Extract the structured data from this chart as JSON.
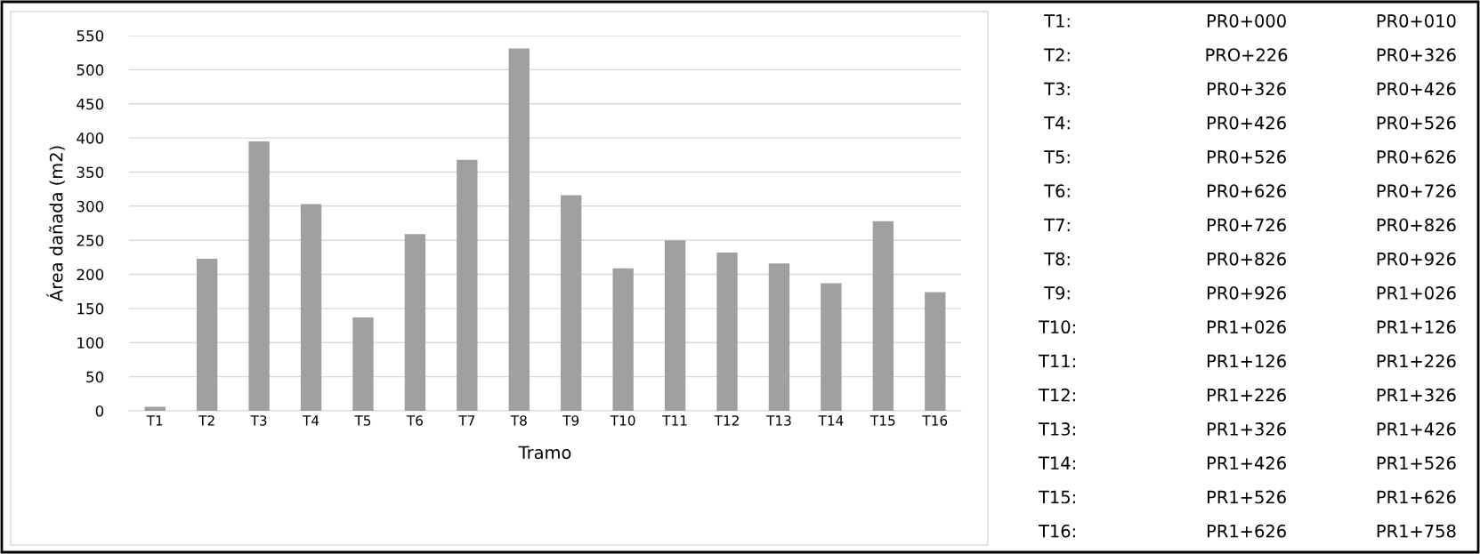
{
  "chart_data": [
    {
      "type": "bar",
      "xlabel": "Tramo",
      "ylabel": "Área dañada (m2)",
      "categories": [
        "T1",
        "T2",
        "T3",
        "T4",
        "T5",
        "T6",
        "T7",
        "T8",
        "T9",
        "T10",
        "T11",
        "T12",
        "T13",
        "T14",
        "T15",
        "T16"
      ],
      "values": [
        6,
        223,
        395,
        303,
        137,
        259,
        368,
        531,
        316,
        209,
        250,
        232,
        216,
        187,
        278,
        174
      ],
      "color": "#a0a0a0",
      "ylim": [
        0,
        550
      ],
      "yticks": [
        0,
        50,
        100,
        150,
        200,
        250,
        300,
        350,
        400,
        450,
        500,
        550
      ],
      "grid": "y"
    },
    {
      "type": "other",
      "annotations": [
        "T1:",
        "PR0+000",
        "PR0+010",
        "T2:",
        "PRO+226",
        "PR0+326",
        "T3:",
        "PR0+326",
        "PR0+426",
        "T4:",
        "PR0+426",
        "PR0+526",
        "T5:",
        "PR0+526",
        "PR0+626",
        "T6:",
        "PR0+626",
        "PR0+726",
        "T7:",
        "PR0+726",
        "PR0+826",
        "T8:",
        "PR0+826",
        "PR0+926",
        "T9:",
        "PR0+926",
        "PR1+026",
        "T10:",
        "PR1+026",
        "PR1+126",
        "T11:",
        "PR1+126",
        "PR1+226",
        "T12:",
        "PR1+226",
        "PR1+326",
        "T13:",
        "PR1+326",
        "PR1+426",
        "T14:",
        "PR1+426",
        "PR1+526",
        "T15:",
        "PR1+526",
        "PR1+626",
        "T16:",
        "PR1+626",
        "PR1+758"
      ]
    }
  ]
}
